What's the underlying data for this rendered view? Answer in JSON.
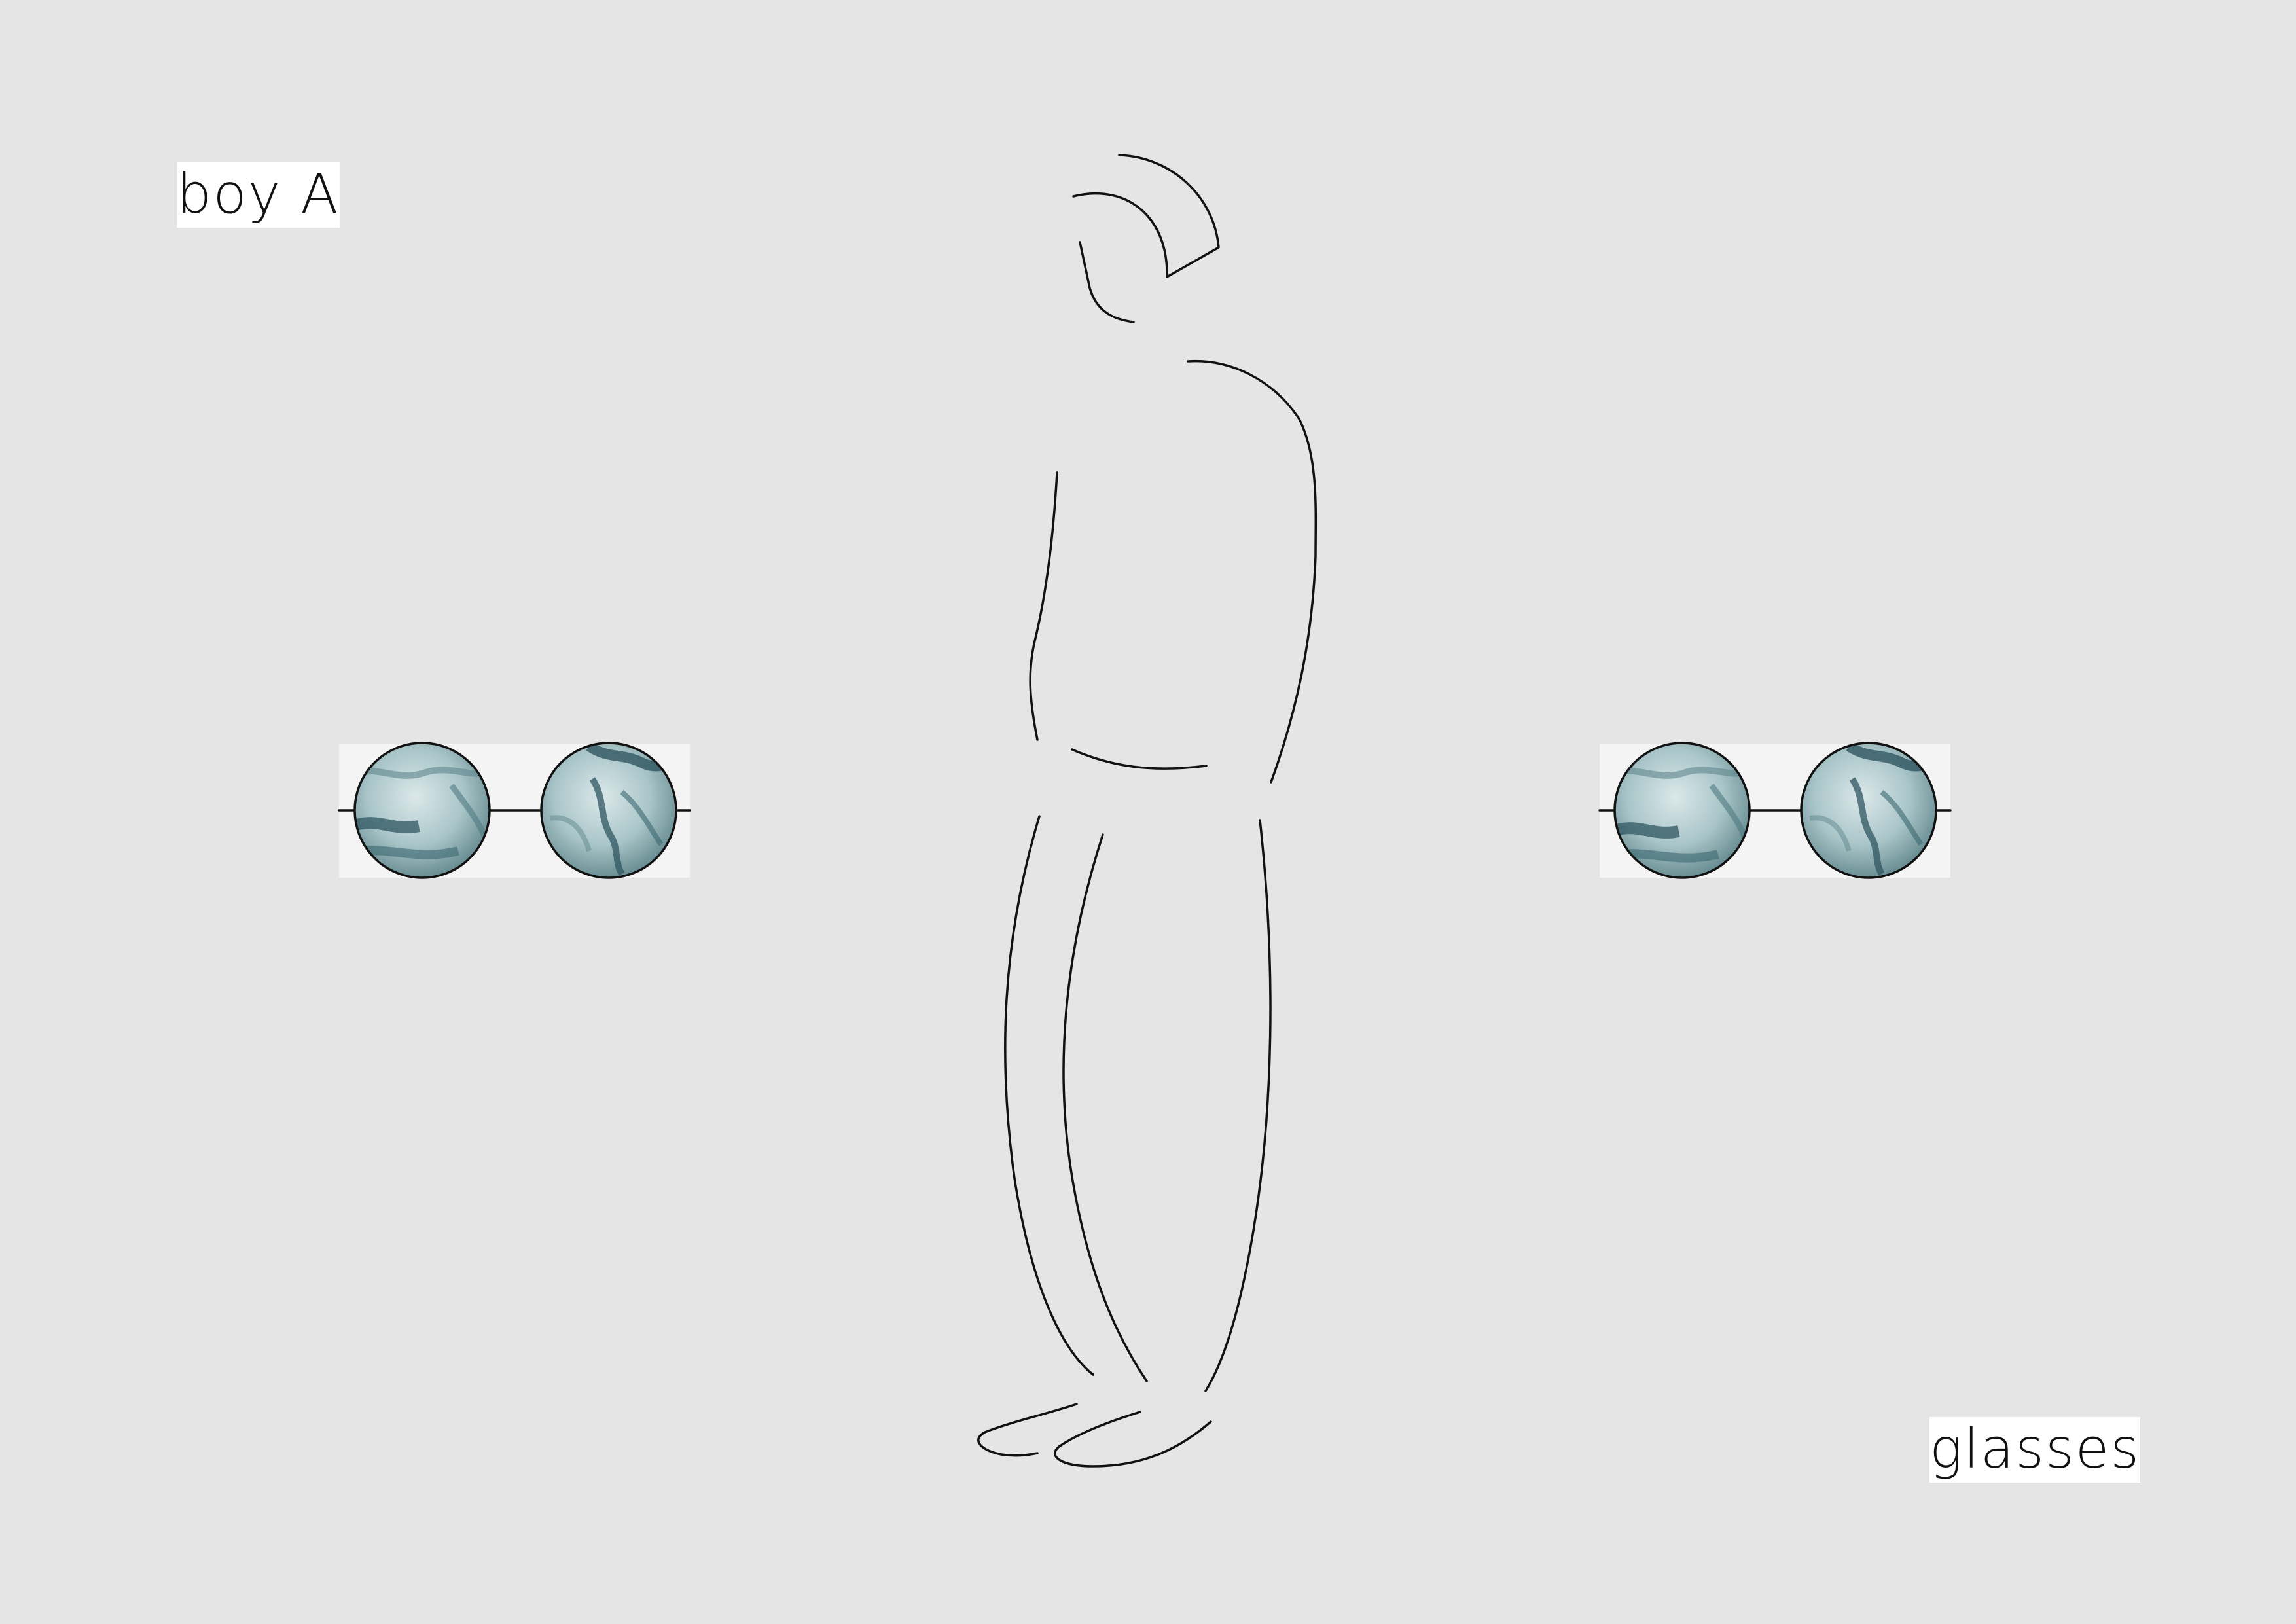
{
  "labels": {
    "title": "boy A",
    "caption": "glasses"
  },
  "illustration": {
    "subject": "standing-figure-line-drawing",
    "object": "round-glasses",
    "glasses_count": 2
  },
  "colors": {
    "background": "#e5e5e5",
    "label_background": "#ffffff",
    "line": "#111111",
    "lens_light": "#d3e2e4",
    "lens_mid": "#8fb1b5",
    "lens_dark": "#2f5560",
    "glasses_panel": "#f4f4f4"
  }
}
